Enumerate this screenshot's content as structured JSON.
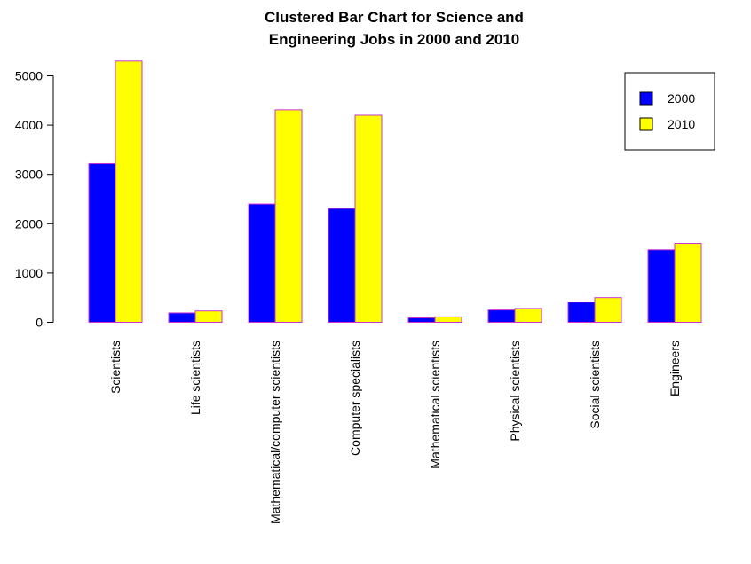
{
  "chart_data": {
    "type": "bar",
    "title": [
      "Clustered Bar Chart for Science and",
      "Engineering Jobs in 2000 and 2010"
    ],
    "xlabel": "",
    "ylabel": "",
    "ylim": [
      0,
      5000
    ],
    "yticks": [
      "0",
      "1000",
      "2000",
      "3000",
      "4000",
      "5000"
    ],
    "categories": [
      "Scientists",
      "Life scientists",
      "Mathematical/computer scientists",
      "Computer specialists",
      "Mathematical scientists",
      "Physical scientists",
      "Social scientists",
      "Engineers"
    ],
    "series": [
      {
        "name": "2000",
        "color": "#0000ff",
        "values": [
          3220,
          190,
          2400,
          2310,
          90,
          250,
          410,
          1470
        ]
      },
      {
        "name": "2010",
        "color": "#ffff00",
        "values": [
          5300,
          230,
          4310,
          4200,
          110,
          280,
          500,
          1600
        ]
      }
    ],
    "bar_border_color": "#cc33cc",
    "grid": false,
    "legend_position": "top-right"
  }
}
